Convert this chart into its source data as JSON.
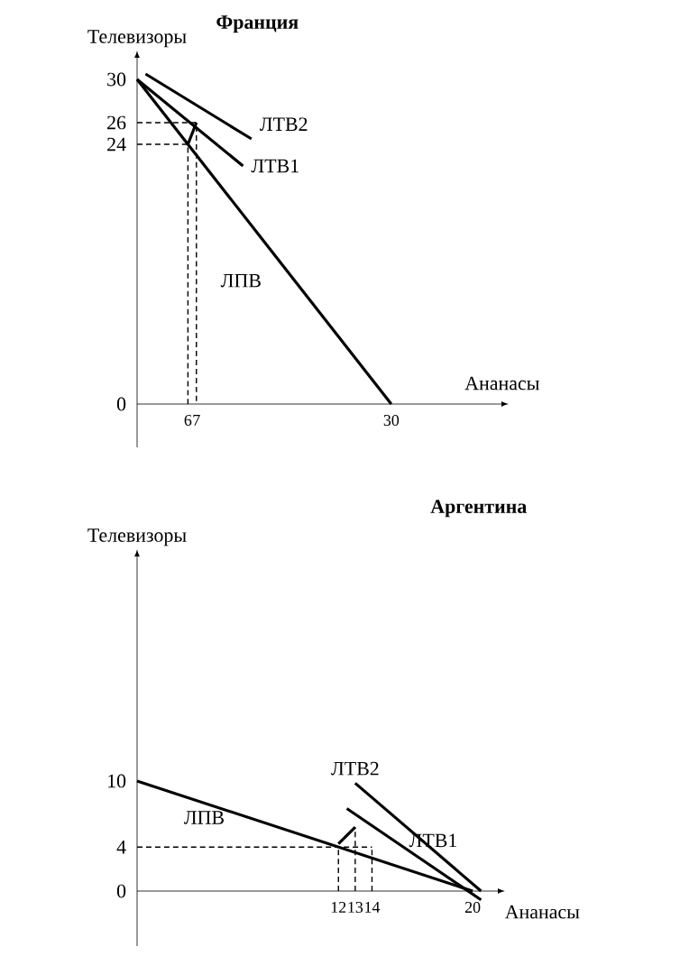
{
  "chart_data": [
    {
      "type": "line",
      "title": "Франция",
      "xlabel": "Ананасы",
      "ylabel": "Телевизоры",
      "xlim": [
        0,
        43
      ],
      "ylim": [
        -4,
        32
      ],
      "xticks": [
        6,
        7,
        30
      ],
      "yticks": [
        0,
        24,
        26,
        30
      ],
      "series": [
        {
          "name": "ЛПВ",
          "color": "#000000",
          "x": [
            0,
            30
          ],
          "values": [
            30,
            0
          ]
        },
        {
          "name": "ЛТВ1",
          "color": "#000000",
          "x": [
            0,
            12.5
          ],
          "values": [
            30,
            22
          ]
        },
        {
          "name": "ЛТВ2",
          "color": "#000000",
          "x": [
            1,
            13.5
          ],
          "values": [
            30.5,
            24.5
          ]
        },
        {
          "color": "#000000",
          "line_style": "dashed",
          "x": [
            0,
            6,
            6
          ],
          "values": [
            24,
            24,
            0
          ]
        },
        {
          "color": "#000000",
          "line_style": "dashed",
          "x": [
            0,
            7,
            7
          ],
          "values": [
            26,
            26,
            0
          ]
        },
        {
          "color": "#000000",
          "x": [
            6,
            7
          ],
          "values": [
            24,
            26
          ]
        }
      ]
    },
    {
      "type": "line",
      "title": "Аргентина",
      "xlabel": "Ананасы",
      "ylabel": "Телевизоры",
      "xlim": [
        0,
        21.5
      ],
      "ylim": [
        -5,
        30.4
      ],
      "xticks": [
        12,
        13,
        14,
        20
      ],
      "yticks": [
        0,
        4,
        10
      ],
      "series": [
        {
          "name": "ЛПВ",
          "color": "#000000",
          "x": [
            0,
            20
          ],
          "values": [
            10,
            0
          ]
        },
        {
          "name": "ЛТВ1",
          "color": "#000000",
          "x": [
            12.5,
            20.5
          ],
          "values": [
            7.5,
            -0.8
          ]
        },
        {
          "name": "ЛТВ2",
          "color": "#000000",
          "x": [
            13,
            20.5
          ],
          "values": [
            9.8,
            0
          ]
        },
        {
          "color": "#000000",
          "line_style": "dashed",
          "x": [
            0,
            14
          ],
          "values": [
            4,
            4
          ]
        },
        {
          "color": "#000000",
          "line_style": "dashed",
          "x": [
            12,
            12
          ],
          "values": [
            0,
            4
          ]
        },
        {
          "color": "#000000",
          "line_style": "dashed",
          "x": [
            13,
            13
          ],
          "values": [
            0,
            5.8
          ]
        },
        {
          "color": "#000000",
          "line_style": "dashed",
          "x": [
            14,
            14
          ],
          "values": [
            0,
            4
          ]
        },
        {
          "color": "#000000",
          "x": [
            13,
            12
          ],
          "values": [
            5.8,
            4.3
          ]
        }
      ]
    }
  ]
}
